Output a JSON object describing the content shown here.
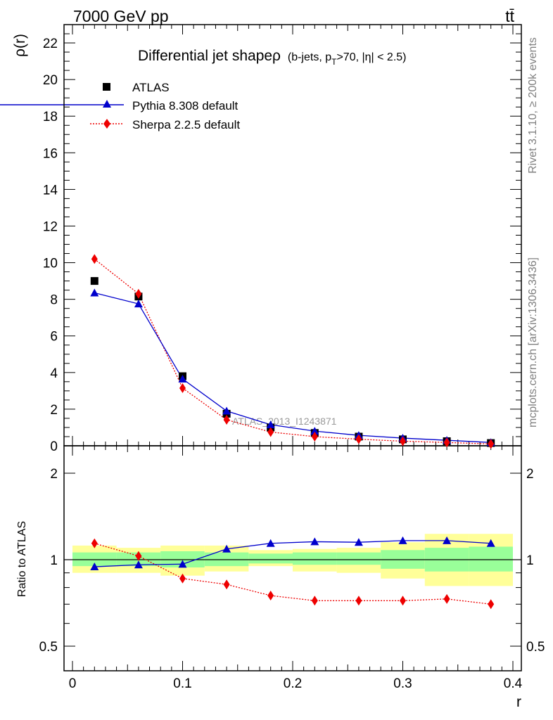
{
  "header": {
    "energy_label": "7000 GeV pp",
    "process_label": "tt̄"
  },
  "side_labels": {
    "rivet": "Rivet 3.1.10, ≥ 200k events",
    "mcplots": "mcplots.cern.ch [arXiv:1306.3436]"
  },
  "watermark": "ATLAS_2013_I1243871",
  "colors": {
    "atlas": "#000000",
    "pythia": "#0000cc",
    "sherpa": "#ee0000",
    "band_inner": "#99ff99",
    "band_outer": "#ffff99"
  },
  "chart_data": [
    {
      "type": "scatter",
      "panel": "main",
      "title_main": "Differential jet shapeρ",
      "title_cut_pre": "(b-jets, p",
      "title_cut_sub": "T",
      "title_cut_post": ">70, |η| < 2.5)",
      "xlabel": "r",
      "ylabel": "ρ(r)",
      "xlim": [
        0,
        0.4
      ],
      "ylim": [
        0,
        23
      ],
      "yticks": [
        0,
        2,
        4,
        6,
        8,
        10,
        12,
        14,
        16,
        18,
        20,
        22
      ],
      "x": [
        0.02,
        0.06,
        0.1,
        0.14,
        0.18,
        0.22,
        0.26,
        0.3,
        0.34,
        0.38
      ],
      "series": [
        {
          "name": "ATLAS",
          "style": "marker-square",
          "values": [
            9.0,
            8.15,
            3.8,
            1.75,
            1.0,
            0.7,
            0.5,
            0.35,
            0.25,
            0.15
          ]
        },
        {
          "name": "Pythia 8.308 default",
          "style": "line-triangle",
          "values": [
            8.35,
            7.75,
            3.65,
            1.9,
            1.15,
            0.8,
            0.57,
            0.42,
            0.3,
            0.18
          ]
        },
        {
          "name": "Sherpa 2.2.5 default",
          "style": "dotted-diamond",
          "values": [
            10.2,
            8.3,
            3.15,
            1.42,
            0.75,
            0.5,
            0.36,
            0.25,
            0.18,
            0.1
          ]
        }
      ],
      "legend_position": "top-left"
    },
    {
      "type": "line",
      "panel": "ratio",
      "ylabel": "Ratio to ATLAS",
      "xlabel": "r",
      "xlim": [
        0,
        0.4
      ],
      "ylim": [
        0.4,
        2.4
      ],
      "y_scale": "log",
      "yticks": [
        0.5,
        1,
        2
      ],
      "ytick_labels": [
        "0.5",
        "1",
        "2"
      ],
      "xticks": [
        0,
        0.1,
        0.2,
        0.3,
        0.4
      ],
      "xtick_labels": [
        "0",
        "0.1",
        "0.2",
        "0.3",
        "0.4"
      ],
      "x": [
        0.02,
        0.06,
        0.1,
        0.14,
        0.18,
        0.22,
        0.26,
        0.3,
        0.34,
        0.38
      ],
      "bands": {
        "x_edges": [
          0.0,
          0.04,
          0.08,
          0.12,
          0.16,
          0.2,
          0.24,
          0.28,
          0.32,
          0.36,
          0.4
        ],
        "inner_low": [
          0.95,
          0.95,
          0.94,
          0.95,
          0.97,
          0.96,
          0.96,
          0.93,
          0.91,
          0.91
        ],
        "inner_high": [
          1.06,
          1.06,
          1.07,
          1.06,
          1.05,
          1.06,
          1.06,
          1.08,
          1.1,
          1.11
        ],
        "outer_low": [
          0.9,
          0.9,
          0.88,
          0.91,
          0.95,
          0.91,
          0.9,
          0.86,
          0.81,
          0.81
        ],
        "outer_high": [
          1.12,
          1.1,
          1.12,
          1.12,
          1.08,
          1.09,
          1.1,
          1.15,
          1.23,
          1.23
        ]
      },
      "series": [
        {
          "name": "Pythia 8.308 default",
          "values": [
            0.945,
            0.96,
            0.965,
            1.09,
            1.14,
            1.155,
            1.15,
            1.165,
            1.165,
            1.14
          ]
        },
        {
          "name": "Sherpa 2.2.5 default",
          "values": [
            1.14,
            1.03,
            0.86,
            0.82,
            0.75,
            0.72,
            0.72,
            0.72,
            0.73,
            0.7
          ]
        }
      ]
    }
  ]
}
